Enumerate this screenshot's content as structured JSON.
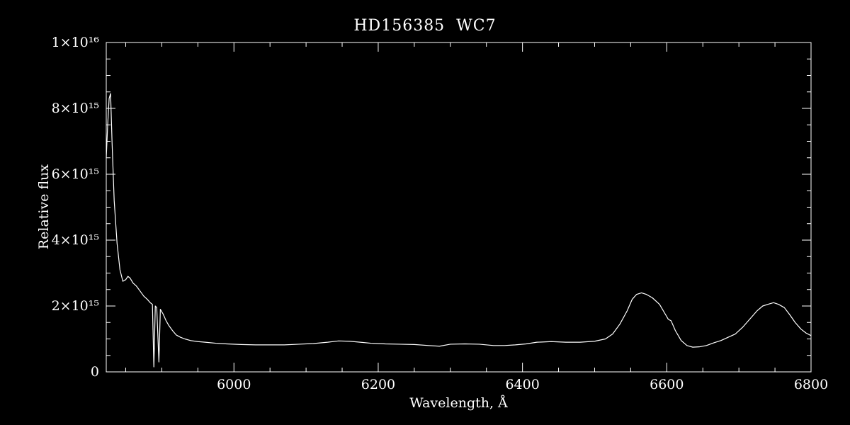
{
  "title": "HD156385  WC7",
  "xlabel": "Wavelength, Å",
  "ylabel": "Relative flux",
  "colors": {
    "background": "#000000",
    "foreground": "#ffffff"
  },
  "chart_data": {
    "type": "line",
    "title": "HD156385  WC7",
    "xlabel": "Wavelength, Å",
    "ylabel": "Relative flux",
    "grid": false,
    "legend": false,
    "xlim": [
      5823,
      6800
    ],
    "ylim": [
      0,
      10000000000000000
    ],
    "y_unit": 1000000000000000,
    "x_ticks": [
      {
        "value": 6000,
        "label": "6000"
      },
      {
        "value": 6200,
        "label": "6200"
      },
      {
        "value": 6400,
        "label": "6400"
      },
      {
        "value": 6600,
        "label": "6600"
      },
      {
        "value": 6800,
        "label": "6800"
      }
    ],
    "x_minor_step": 50,
    "y_ticks": [
      {
        "value": 0,
        "label": "0"
      },
      {
        "value": 2,
        "label": "2×10¹⁵"
      },
      {
        "value": 4,
        "label": "4×10¹⁵"
      },
      {
        "value": 6,
        "label": "6×10¹⁵"
      },
      {
        "value": 8,
        "label": "8×10¹⁵"
      },
      {
        "value": 10,
        "label": "1×10¹⁶"
      }
    ],
    "y_minor_step": 0.5,
    "series": [
      {
        "name": "spectrum",
        "color": "#ffffff",
        "points_unit": "flux in 1e15",
        "points": [
          [
            5823,
            6.5
          ],
          [
            5825,
            7.5
          ],
          [
            5827,
            8.3
          ],
          [
            5829,
            8.45
          ],
          [
            5831,
            7.0
          ],
          [
            5834,
            5.2
          ],
          [
            5838,
            3.9
          ],
          [
            5842,
            3.1
          ],
          [
            5846,
            2.75
          ],
          [
            5850,
            2.8
          ],
          [
            5853,
            2.9
          ],
          [
            5856,
            2.85
          ],
          [
            5860,
            2.7
          ],
          [
            5865,
            2.6
          ],
          [
            5870,
            2.45
          ],
          [
            5875,
            2.3
          ],
          [
            5880,
            2.2
          ],
          [
            5884,
            2.1
          ],
          [
            5887,
            2.05
          ],
          [
            5889,
            0.15
          ],
          [
            5891,
            2.0
          ],
          [
            5893,
            1.95
          ],
          [
            5896,
            0.3
          ],
          [
            5898,
            1.9
          ],
          [
            5902,
            1.75
          ],
          [
            5906,
            1.55
          ],
          [
            5910,
            1.4
          ],
          [
            5915,
            1.25
          ],
          [
            5920,
            1.12
          ],
          [
            5926,
            1.05
          ],
          [
            5932,
            1.0
          ],
          [
            5940,
            0.95
          ],
          [
            5950,
            0.92
          ],
          [
            5960,
            0.9
          ],
          [
            5975,
            0.87
          ],
          [
            5990,
            0.85
          ],
          [
            6010,
            0.83
          ],
          [
            6030,
            0.82
          ],
          [
            6050,
            0.82
          ],
          [
            6070,
            0.82
          ],
          [
            6090,
            0.84
          ],
          [
            6110,
            0.86
          ],
          [
            6130,
            0.9
          ],
          [
            6145,
            0.94
          ],
          [
            6160,
            0.93
          ],
          [
            6175,
            0.9
          ],
          [
            6190,
            0.87
          ],
          [
            6210,
            0.85
          ],
          [
            6230,
            0.84
          ],
          [
            6250,
            0.83
          ],
          [
            6270,
            0.8
          ],
          [
            6285,
            0.78
          ],
          [
            6300,
            0.84
          ],
          [
            6320,
            0.85
          ],
          [
            6340,
            0.84
          ],
          [
            6360,
            0.8
          ],
          [
            6375,
            0.8
          ],
          [
            6390,
            0.82
          ],
          [
            6405,
            0.85
          ],
          [
            6420,
            0.9
          ],
          [
            6440,
            0.92
          ],
          [
            6460,
            0.9
          ],
          [
            6480,
            0.9
          ],
          [
            6500,
            0.93
          ],
          [
            6515,
            1.0
          ],
          [
            6525,
            1.15
          ],
          [
            6535,
            1.45
          ],
          [
            6545,
            1.85
          ],
          [
            6552,
            2.2
          ],
          [
            6558,
            2.35
          ],
          [
            6565,
            2.4
          ],
          [
            6572,
            2.35
          ],
          [
            6580,
            2.25
          ],
          [
            6590,
            2.05
          ],
          [
            6598,
            1.75
          ],
          [
            6602,
            1.6
          ],
          [
            6606,
            1.55
          ],
          [
            6612,
            1.25
          ],
          [
            6620,
            0.95
          ],
          [
            6628,
            0.8
          ],
          [
            6636,
            0.75
          ],
          [
            6645,
            0.76
          ],
          [
            6655,
            0.8
          ],
          [
            6665,
            0.88
          ],
          [
            6675,
            0.95
          ],
          [
            6685,
            1.05
          ],
          [
            6695,
            1.15
          ],
          [
            6705,
            1.35
          ],
          [
            6715,
            1.6
          ],
          [
            6725,
            1.85
          ],
          [
            6733,
            2.0
          ],
          [
            6740,
            2.05
          ],
          [
            6748,
            2.1
          ],
          [
            6755,
            2.05
          ],
          [
            6763,
            1.95
          ],
          [
            6770,
            1.75
          ],
          [
            6778,
            1.5
          ],
          [
            6786,
            1.3
          ],
          [
            6793,
            1.18
          ],
          [
            6800,
            1.1
          ]
        ]
      }
    ]
  }
}
